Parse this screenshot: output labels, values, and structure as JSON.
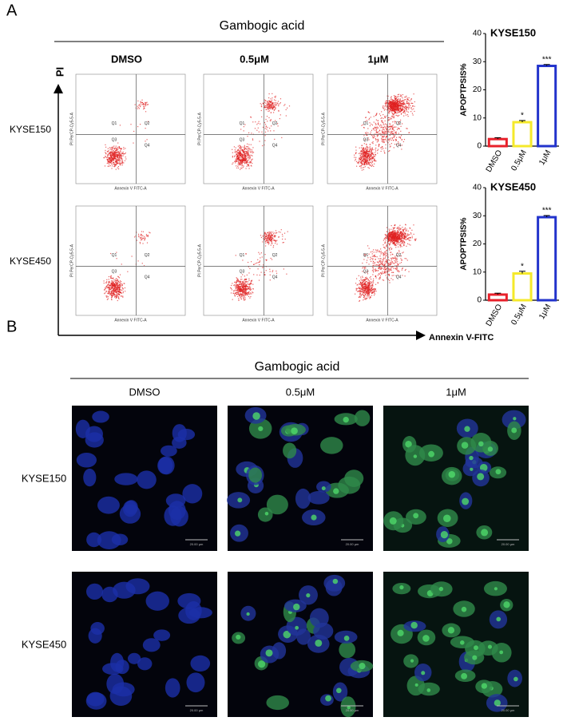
{
  "panel_a": {
    "label": "A",
    "title": "Gambogic acid",
    "columns": [
      "DMSO",
      "0.5μM",
      "1μM"
    ],
    "rows": [
      "KYSE150",
      "KYSE450"
    ],
    "y_axis_label": "PI",
    "x_axis_label": "Annexin V-FITC",
    "quadrants": [
      "Q1",
      "Q2",
      "Q3",
      "Q4"
    ],
    "plot_x_label": "Annexin V FITC-A",
    "plot_y_label": "PI PerCP-Cy5-5-A"
  },
  "chart_data": [
    {
      "type": "bar",
      "title": "KYSE150",
      "y_label": "APOPTPSIS%",
      "categories": [
        "DMSO",
        "0.5μM",
        "1μM"
      ],
      "values": [
        2.5,
        8.5,
        28.5
      ],
      "errors": [
        0.5,
        0.6,
        0.5
      ],
      "significance": [
        null,
        "*",
        "***"
      ],
      "colors": [
        "#e8202a",
        "#f5e92a",
        "#2233cc"
      ],
      "ylim": [
        0,
        40
      ],
      "yticks": [
        0,
        10,
        20,
        30,
        40
      ]
    },
    {
      "type": "bar",
      "title": "KYSE450",
      "y_label": "APOPTPSIS%",
      "categories": [
        "DMSO",
        "0.5μM",
        "1μM"
      ],
      "values": [
        2,
        9.5,
        29.5
      ],
      "errors": [
        0.5,
        0.8,
        0.6
      ],
      "significance": [
        null,
        "*",
        "***"
      ],
      "colors": [
        "#e8202a",
        "#f5e92a",
        "#2233cc"
      ],
      "ylim": [
        0,
        40
      ],
      "yticks": [
        0,
        10,
        20,
        30,
        40
      ]
    }
  ],
  "panel_b": {
    "label": "B",
    "title": "Gambogic acid",
    "columns": [
      "DMSO",
      "0.5μM",
      "1μM"
    ],
    "rows": [
      "KYSE150",
      "KYSE450"
    ],
    "scale_bar": "20.00 µm"
  }
}
